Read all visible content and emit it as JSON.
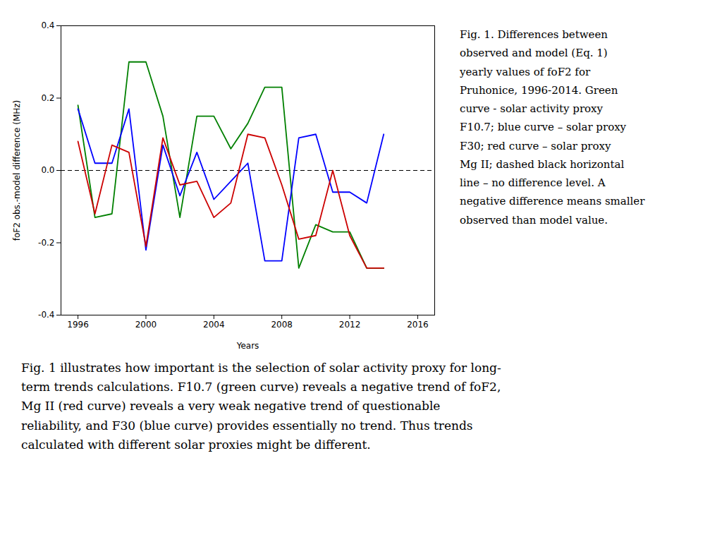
{
  "chart_data": {
    "type": "line",
    "x": [
      1996,
      1997,
      1998,
      1999,
      2000,
      2001,
      2002,
      2003,
      2004,
      2005,
      2006,
      2007,
      2008,
      2009,
      2010,
      2011,
      2012,
      2013,
      2014
    ],
    "series": [
      {
        "color": "#008000",
        "values": [
          0.18,
          -0.13,
          -0.12,
          0.3,
          0.3,
          0.15,
          -0.13,
          0.15,
          0.15,
          0.06,
          0.13,
          0.23,
          0.23,
          -0.27,
          -0.15,
          -0.17,
          -0.17,
          -0.27,
          -0.27
        ]
      },
      {
        "color": "#0000FF",
        "values": [
          0.17,
          0.02,
          0.02,
          0.17,
          -0.22,
          0.07,
          -0.07,
          0.05,
          -0.08,
          -0.03,
          0.02,
          -0.25,
          -0.25,
          0.09,
          0.1,
          -0.06,
          -0.06,
          -0.09,
          0.1
        ]
      },
      {
        "color": "#CC0000",
        "values": [
          0.08,
          -0.12,
          0.07,
          0.05,
          -0.21,
          0.09,
          -0.04,
          -0.03,
          -0.13,
          -0.09,
          0.1,
          0.09,
          -0.04,
          -0.19,
          -0.18,
          -0.0,
          -0.18,
          -0.27,
          -0.27
        ]
      }
    ],
    "xlabel": "Years",
    "ylabel": "foF2 obs.-model difference (MHz)",
    "xlim": [
      1995,
      2017
    ],
    "ylim": [
      -0.4,
      0.4
    ],
    "xticks": [
      1996,
      2000,
      2004,
      2008,
      2012,
      2016
    ],
    "yticks": [
      -0.4,
      -0.2,
      {
        "value": 0,
        "label": "0.0"
      },
      0.2,
      0.4
    ],
    "reference_lines": [
      {
        "y": 0,
        "color": "black",
        "line_style": "dashed"
      }
    ],
    "annotations": [
      {
        "text": [
          "Fig. 1. Differences between",
          "observed and model (Eq. 1)",
          "yearly values of foF2 for",
          "Pruhonice, 1996-2014. Green",
          "curve - solar activity proxy",
          "F10.7; blue curve – solar proxy",
          "F30; red curve – solar proxy",
          "Mg II; dashed black horizontal",
          "line – no difference level. A",
          "negative difference means smaller",
          "observed than model value."
        ]
      },
      {
        "text": [
          "Fig. 1 illustrates how important is the selection of solar activity proxy for long-",
          "term trends calculations. F10.7 (green curve) reveals a negative trend of foF2,",
          "Mg II (red curve) reveals a very weak negative trend of questionable",
          "reliability, and F30 (blue curve) provides essentially no trend. Thus trends",
          "calculated with different solar proxies might be different."
        ]
      }
    ]
  }
}
